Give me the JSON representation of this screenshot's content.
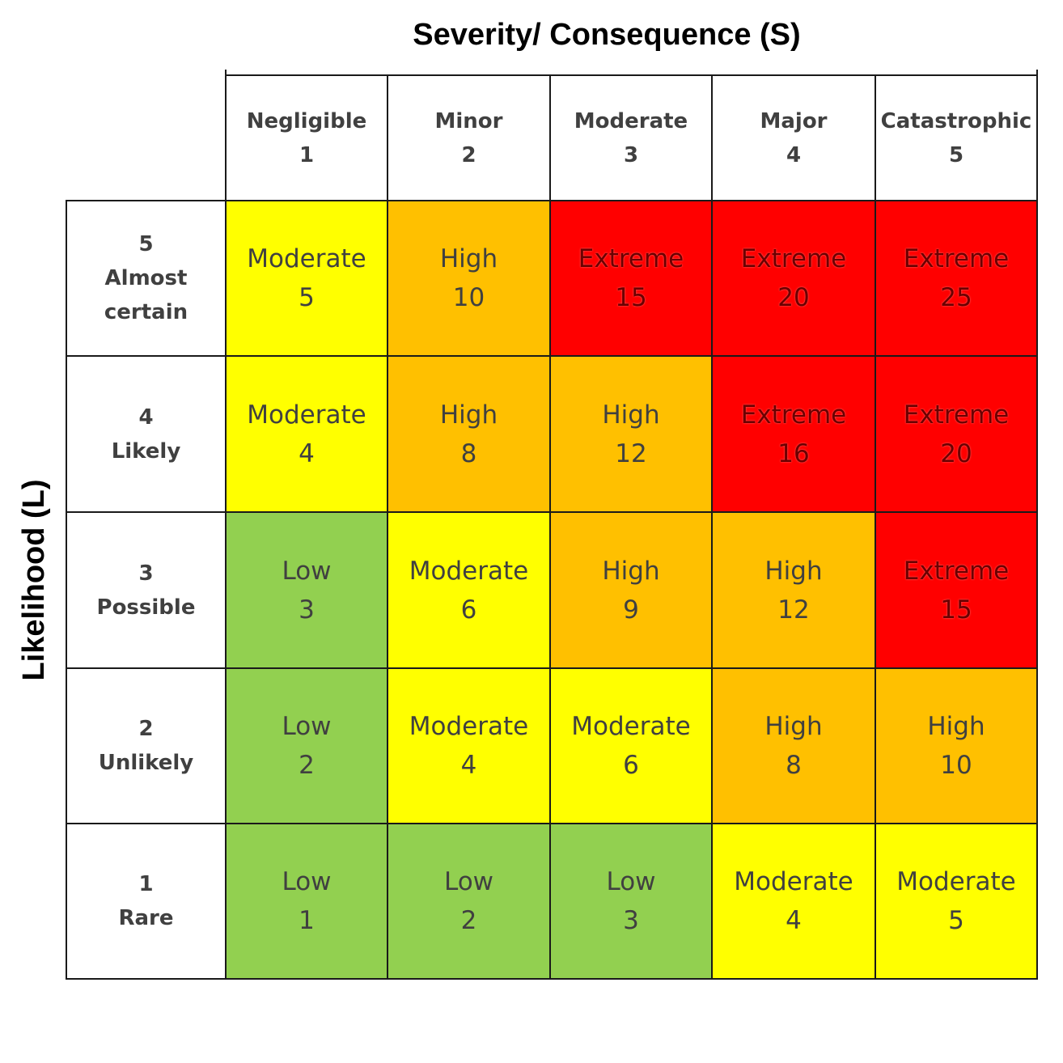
{
  "severity_title": "Severity/ Consequence (S)",
  "likelihood_title": "Likelihood (L)",
  "levels": {
    "low": {
      "label": "Low",
      "color": "#92d050"
    },
    "moderate": {
      "label": "Moderate",
      "color": "#ffff00"
    },
    "high": {
      "label": "High",
      "color": "#ffc000"
    },
    "extreme": {
      "label": "Extreme",
      "color": "#ff0000"
    }
  },
  "severity_columns": [
    {
      "name": "Negligible",
      "value": "1"
    },
    {
      "name": "Minor",
      "value": "2"
    },
    {
      "name": "Moderate",
      "value": "3"
    },
    {
      "name": "Major",
      "value": "4"
    },
    {
      "name": "Catastrophic",
      "value": "5"
    }
  ],
  "likelihood_rows": [
    {
      "value": "5",
      "name": "Almost certain",
      "name_lines": [
        "Almost",
        "certain"
      ],
      "cells": [
        {
          "level": "moderate",
          "label": "Moderate",
          "score": "5"
        },
        {
          "level": "high",
          "label": "High",
          "score": "10"
        },
        {
          "level": "extreme",
          "label": "Extreme",
          "score": "15"
        },
        {
          "level": "extreme",
          "label": "Extreme",
          "score": "20"
        },
        {
          "level": "extreme",
          "label": "Extreme",
          "score": "25"
        }
      ]
    },
    {
      "value": "4",
      "name": "Likely",
      "name_lines": [
        "Likely"
      ],
      "cells": [
        {
          "level": "moderate",
          "label": "Moderate",
          "score": "4"
        },
        {
          "level": "high",
          "label": "High",
          "score": "8"
        },
        {
          "level": "high",
          "label": "High",
          "score": "12"
        },
        {
          "level": "extreme",
          "label": "Extreme",
          "score": "16"
        },
        {
          "level": "extreme",
          "label": "Extreme",
          "score": "20"
        }
      ]
    },
    {
      "value": "3",
      "name": "Possible",
      "name_lines": [
        "Possible"
      ],
      "cells": [
        {
          "level": "low",
          "label": "Low",
          "score": "3"
        },
        {
          "level": "moderate",
          "label": "Moderate",
          "score": "6"
        },
        {
          "level": "high",
          "label": "High",
          "score": "9"
        },
        {
          "level": "high",
          "label": "High",
          "score": "12"
        },
        {
          "level": "extreme",
          "label": "Extreme",
          "score": "15"
        }
      ]
    },
    {
      "value": "2",
      "name": "Unlikely",
      "name_lines": [
        "Unlikely"
      ],
      "cells": [
        {
          "level": "low",
          "label": "Low",
          "score": "2"
        },
        {
          "level": "moderate",
          "label": "Moderate",
          "score": "4"
        },
        {
          "level": "moderate",
          "label": "Moderate",
          "score": "6"
        },
        {
          "level": "high",
          "label": "High",
          "score": "8"
        },
        {
          "level": "high",
          "label": "High",
          "score": "10"
        }
      ]
    },
    {
      "value": "1",
      "name": "Rare",
      "name_lines": [
        "Rare"
      ],
      "cells": [
        {
          "level": "low",
          "label": "Low",
          "score": "1"
        },
        {
          "level": "low",
          "label": "Low",
          "score": "2"
        },
        {
          "level": "low",
          "label": "Low",
          "score": "3"
        },
        {
          "level": "moderate",
          "label": "Moderate",
          "score": "4"
        },
        {
          "level": "moderate",
          "label": "Moderate",
          "score": "5"
        }
      ]
    }
  ]
}
